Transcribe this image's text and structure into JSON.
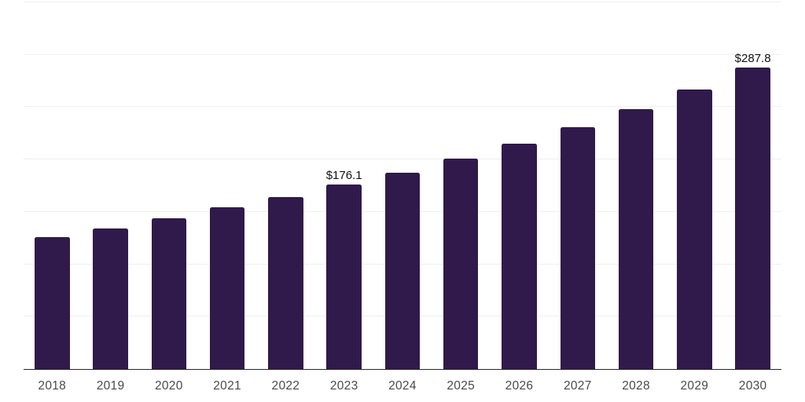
{
  "chart": {
    "title": ""
  },
  "chart_data": {
    "type": "bar",
    "categories": [
      "2018",
      "2019",
      "2020",
      "2021",
      "2022",
      "2023",
      "2024",
      "2025",
      "2026",
      "2027",
      "2028",
      "2029",
      "2030"
    ],
    "values": [
      125.6,
      134.5,
      143.7,
      154.6,
      164.3,
      176.1,
      187.6,
      201.0,
      215.4,
      231.0,
      248.1,
      266.9,
      287.8
    ],
    "title": "",
    "xlabel": "",
    "ylabel": "",
    "ylim": [
      0,
      350
    ],
    "y_gridline_step": 50,
    "y_axis_labels_visible": false,
    "grid": true,
    "legend_position": "none",
    "annotations": [
      {
        "category": "2023",
        "text": "$176.1"
      },
      {
        "category": "2030",
        "text": "$287.8"
      }
    ]
  },
  "style": {
    "bar_color": "#301A4B",
    "gridline_color": "#EFEFEF",
    "axis_line_color": "#262626",
    "x_tick_label_color": "#4A4A4A",
    "data_label_color": "#111111",
    "background_color": "#FFFFFF"
  }
}
